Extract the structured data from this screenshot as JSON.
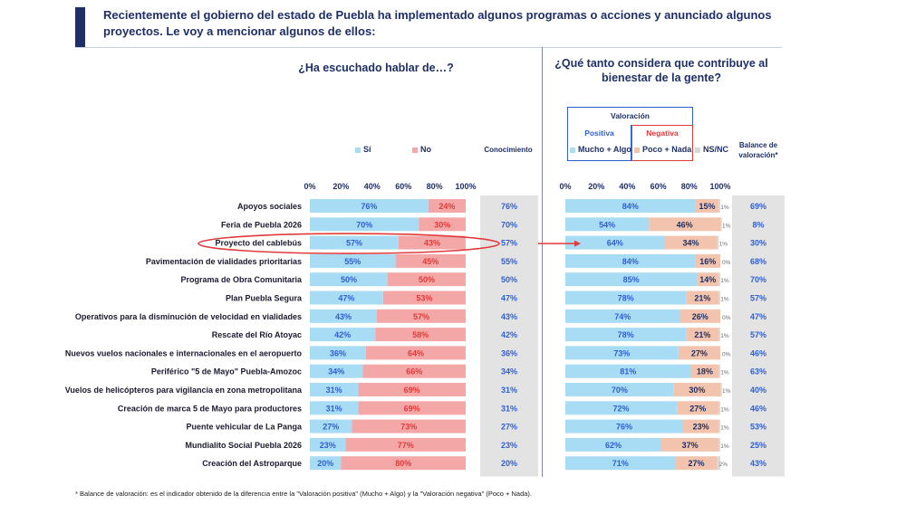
{
  "title": "Recientemente el gobierno del estado de Puebla ha implementado algunos programas o acciones y anunciado algunos proyectos. Le voy a mencionar algunos de ellos:",
  "question_left": "¿Ha escuchado hablar de…?",
  "question_right": "¿Qué tanto considera que contribuye al bienestar de la gente?",
  "legend_left": {
    "si": "Sí",
    "no": "No"
  },
  "header_conocimiento": "Conocimiento",
  "valoracion": {
    "title": "Valoración",
    "positiva": "Positiva",
    "negativa": "Negativa",
    "mucho_algo": "Mucho + Algo",
    "poco_nada": "Poco + Nada",
    "nsnc": "NS/NC"
  },
  "header_balance": "Balance de valoración*",
  "footnote": "* Balance de valoración: es el indicador obtenido de la diferencia entre la \"Valoración positiva\" (Mucho + Algo) y la \"Valoración negativa\" (Poco + Nada).",
  "colors": {
    "si": "#a8dcf4",
    "no": "#f4a7a7",
    "mucho_algo": "#a8dcf4",
    "poco_nada": "#f2c4ae",
    "nsnc": "#d9d9d9",
    "col_bg": "#e3e3e3",
    "text_dark": "#1f2f67",
    "value_blue": "#2f5fd0",
    "highlight": "#e03a3a"
  },
  "chart_data": [
    {
      "type": "bar",
      "stacked": true,
      "orientation": "horizontal",
      "title": "¿Ha escuchado hablar de…?",
      "xlim": [
        0,
        100
      ],
      "x_ticks": [
        "0%",
        "20%",
        "40%",
        "60%",
        "80%",
        "100%"
      ],
      "categories": [
        "Apoyos sociales",
        "Feria de Puebla 2026",
        "Proyecto del cablebús",
        "Pavimentación de vialidades prioritarias",
        "Programa de Obra Comunitaria",
        "Plan Puebla Segura",
        "Operativos para la disminución de velocidad en vialidades",
        "Rescate del Río Atoyac",
        "Nuevos vuelos nacionales e internacionales en el aeropuerto",
        "Periférico \"5 de Mayo\" Puebla-Amozoc",
        "Vuelos de helicópteros para vigilancia en zona metropolitana",
        "Creación de marca 5 de Mayo para productores",
        "Puente vehicular de La Panga",
        "Mundialito Social Puebla 2026",
        "Creación del Astroparque"
      ],
      "series": [
        {
          "name": "Sí",
          "values": [
            76,
            70,
            57,
            55,
            50,
            47,
            43,
            42,
            36,
            34,
            31,
            31,
            27,
            23,
            20
          ]
        },
        {
          "name": "No",
          "values": [
            24,
            30,
            43,
            45,
            50,
            53,
            57,
            58,
            64,
            66,
            69,
            69,
            73,
            77,
            80
          ]
        }
      ],
      "highlighted_category": "Proyecto del cablebús"
    },
    {
      "type": "table",
      "title": "Conocimiento",
      "values": [
        "76%",
        "70%",
        "57%",
        "55%",
        "50%",
        "47%",
        "43%",
        "42%",
        "36%",
        "34%",
        "31%",
        "31%",
        "27%",
        "23%",
        "20%"
      ]
    },
    {
      "type": "bar",
      "stacked": true,
      "orientation": "horizontal",
      "title": "¿Qué tanto considera que contribuye al bienestar de la gente?",
      "xlim": [
        0,
        100
      ],
      "x_ticks": [
        "0%",
        "20%",
        "40%",
        "60%",
        "80%",
        "100%"
      ],
      "series": [
        {
          "name": "Mucho + Algo",
          "values": [
            84,
            54,
            64,
            84,
            85,
            78,
            74,
            78,
            73,
            81,
            70,
            72,
            76,
            62,
            71
          ]
        },
        {
          "name": "Poco + Nada",
          "values": [
            15,
            46,
            34,
            16,
            14,
            21,
            26,
            21,
            27,
            18,
            30,
            27,
            23,
            37,
            27
          ]
        },
        {
          "name": "NS/NC",
          "values": [
            1,
            1,
            1,
            0,
            1,
            1,
            0,
            1,
            0,
            1,
            1,
            1,
            1,
            1,
            2
          ]
        }
      ]
    },
    {
      "type": "table",
      "title": "Balance de valoración*",
      "values": [
        "69%",
        "8%",
        "30%",
        "68%",
        "70%",
        "57%",
        "47%",
        "57%",
        "46%",
        "63%",
        "40%",
        "46%",
        "53%",
        "25%",
        "43%"
      ]
    }
  ]
}
